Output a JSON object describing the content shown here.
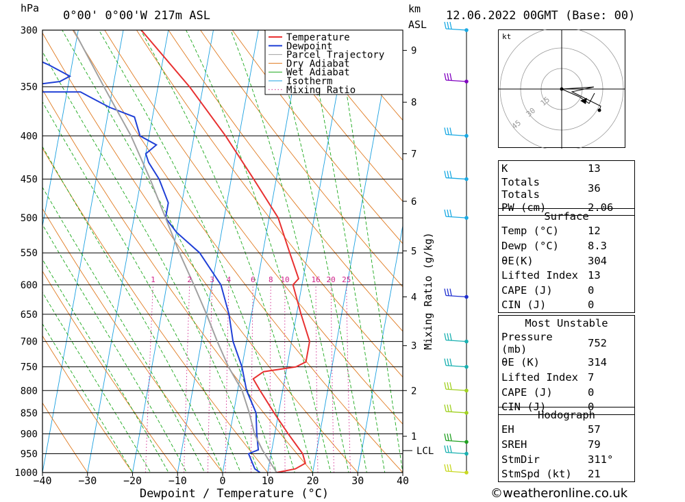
{
  "header": {
    "hpa_label": "hPa",
    "location": "0°00' 0°00'W 217m ASL",
    "km_label": "km",
    "asl_label": "ASL",
    "datetime": "12.06.2022 00GMT (Base: 00)"
  },
  "legend": [
    "Temperature",
    "Dewpoint",
    "Parcel Trajectory",
    "Dry Adiabat",
    "Wet Adiabat",
    "Isotherm",
    "Mixing Ratio"
  ],
  "colors": {
    "temperature": "#e83030",
    "dewpoint": "#1f3fd6",
    "parcel": "#a0a0a0",
    "dry_adiabat": "#e07a20",
    "wet_adiabat": "#1aa81a",
    "isotherm": "#1aa0e0",
    "mixing_ratio": "#d0208a"
  },
  "chart_data": {
    "type": "line",
    "xlabel": "Dewpoint / Temperature (°C)",
    "ylabel": "Mixing Ratio (g/kg)",
    "x_ticks": [
      -40,
      -30,
      -20,
      -10,
      0,
      10,
      20,
      30,
      40
    ],
    "x_tick_labels": [
      "−40",
      "−30",
      "−20",
      "−10",
      "0",
      "10",
      "20",
      "30",
      "40"
    ],
    "pressure_levels": [
      300,
      350,
      400,
      450,
      500,
      550,
      600,
      650,
      700,
      750,
      800,
      850,
      900,
      950,
      1000
    ],
    "km_ticks": [
      {
        "km": "1",
        "p": 906
      },
      {
        "km": "2",
        "p": 800
      },
      {
        "km": "3",
        "p": 708
      },
      {
        "km": "4",
        "p": 620
      },
      {
        "km": "5",
        "p": 547
      },
      {
        "km": "6",
        "p": 478
      },
      {
        "km": "7",
        "p": 420
      },
      {
        "km": "8",
        "p": 365
      },
      {
        "km": "9",
        "p": 317
      }
    ],
    "lcl_label": "LCL",
    "lcl_pressure": 942,
    "mixing_ratio_labels": [
      "1",
      "2",
      "3",
      "4",
      "6",
      "8",
      "10",
      "16",
      "20",
      "25"
    ],
    "mixing_ratio_values": [
      1,
      2,
      3,
      4,
      6,
      8,
      10,
      16,
      20,
      25
    ],
    "series": [
      {
        "name": "Temperature",
        "points": [
          [
            1000,
            12
          ],
          [
            990,
            16
          ],
          [
            975,
            18
          ],
          [
            950,
            17
          ],
          [
            900,
            13
          ],
          [
            850,
            9
          ],
          [
            800,
            5
          ],
          [
            775,
            3
          ],
          [
            760,
            5
          ],
          [
            750,
            12
          ],
          [
            740,
            14
          ],
          [
            700,
            14
          ],
          [
            650,
            11
          ],
          [
            600,
            8
          ],
          [
            590,
            9
          ],
          [
            550,
            6
          ],
          [
            500,
            2
          ],
          [
            450,
            -5
          ],
          [
            400,
            -13
          ],
          [
            350,
            -23
          ],
          [
            300,
            -36
          ]
        ]
      },
      {
        "name": "Dewpoint",
        "points": [
          [
            1000,
            8.3
          ],
          [
            990,
            7
          ],
          [
            950,
            5
          ],
          [
            940,
            7
          ],
          [
            900,
            6
          ],
          [
            850,
            5
          ],
          [
            800,
            2
          ],
          [
            750,
            0
          ],
          [
            700,
            -3
          ],
          [
            650,
            -5
          ],
          [
            600,
            -8
          ],
          [
            550,
            -14
          ],
          [
            520,
            -20
          ],
          [
            500,
            -23
          ],
          [
            480,
            -23
          ],
          [
            450,
            -26
          ],
          [
            430,
            -29
          ],
          [
            420,
            -30
          ],
          [
            410,
            -28
          ],
          [
            400,
            -32
          ],
          [
            380,
            -34
          ],
          [
            370,
            -40
          ],
          [
            355,
            -47
          ],
          [
            355,
            -52
          ],
          [
            355,
            -70
          ],
          [
            345,
            -52
          ],
          [
            340,
            -50
          ],
          [
            330,
            -55
          ],
          [
            325,
            -58
          ],
          [
            315,
            -62
          ],
          [
            300,
            -70
          ]
        ]
      },
      {
        "name": "Parcel Trajectory",
        "points": [
          [
            1000,
            12
          ],
          [
            942,
            8
          ],
          [
            900,
            5.5
          ],
          [
            850,
            3.5
          ],
          [
            800,
            1
          ],
          [
            750,
            -3
          ],
          [
            700,
            -6.5
          ],
          [
            650,
            -10
          ],
          [
            600,
            -14
          ],
          [
            550,
            -18.5
          ],
          [
            500,
            -23
          ],
          [
            450,
            -28
          ],
          [
            400,
            -34
          ],
          [
            350,
            -42
          ],
          [
            300,
            -51
          ]
        ]
      }
    ]
  },
  "wind_barbs": [
    {
      "p": 300,
      "color": "#19a9e3"
    },
    {
      "p": 345,
      "color": "#8000c0"
    },
    {
      "p": 400,
      "color": "#19a9e3"
    },
    {
      "p": 450,
      "color": "#19a9e3"
    },
    {
      "p": 500,
      "color": "#19a9e3"
    },
    {
      "p": 620,
      "color": "#2030d0"
    },
    {
      "p": 700,
      "color": "#19b0b0"
    },
    {
      "p": 750,
      "color": "#19b0b0"
    },
    {
      "p": 800,
      "color": "#a0d020"
    },
    {
      "p": 850,
      "color": "#a0d020"
    },
    {
      "p": 920,
      "color": "#20a020"
    },
    {
      "p": 950,
      "color": "#19b0b0"
    },
    {
      "p": 1000,
      "color": "#c8d820"
    }
  ],
  "hodograph": {
    "unit": "kt",
    "ring_labels": [
      "15",
      "30",
      "45"
    ]
  },
  "indices": [
    {
      "k": "K",
      "v": "13"
    },
    {
      "k": "Totals Totals",
      "v": "36"
    },
    {
      "k": "PW (cm)",
      "v": "2.06"
    }
  ],
  "surface": {
    "title": "Surface",
    "rows": [
      {
        "k": "Temp (°C)",
        "v": "12"
      },
      {
        "k": "Dewp (°C)",
        "v": "8.3"
      },
      {
        "k": "θE(K)",
        "v": "304"
      },
      {
        "k": "Lifted Index",
        "v": "13"
      },
      {
        "k": "CAPE (J)",
        "v": "0"
      },
      {
        "k": "CIN (J)",
        "v": "0"
      }
    ]
  },
  "most_unstable": {
    "title": "Most Unstable",
    "rows": [
      {
        "k": "Pressure (mb)",
        "v": "752"
      },
      {
        "k": "θE (K)",
        "v": "314"
      },
      {
        "k": "Lifted Index",
        "v": "7"
      },
      {
        "k": "CAPE (J)",
        "v": "0"
      },
      {
        "k": "CIN (J)",
        "v": "0"
      }
    ]
  },
  "hodograph_table": {
    "title": "Hodograph",
    "rows": [
      {
        "k": "EH",
        "v": "57"
      },
      {
        "k": "SREH",
        "v": "79"
      },
      {
        "k": "StmDir",
        "v": "311°"
      },
      {
        "k": "StmSpd (kt)",
        "v": "21"
      }
    ]
  },
  "copyright": "©weatheronline.co.uk"
}
